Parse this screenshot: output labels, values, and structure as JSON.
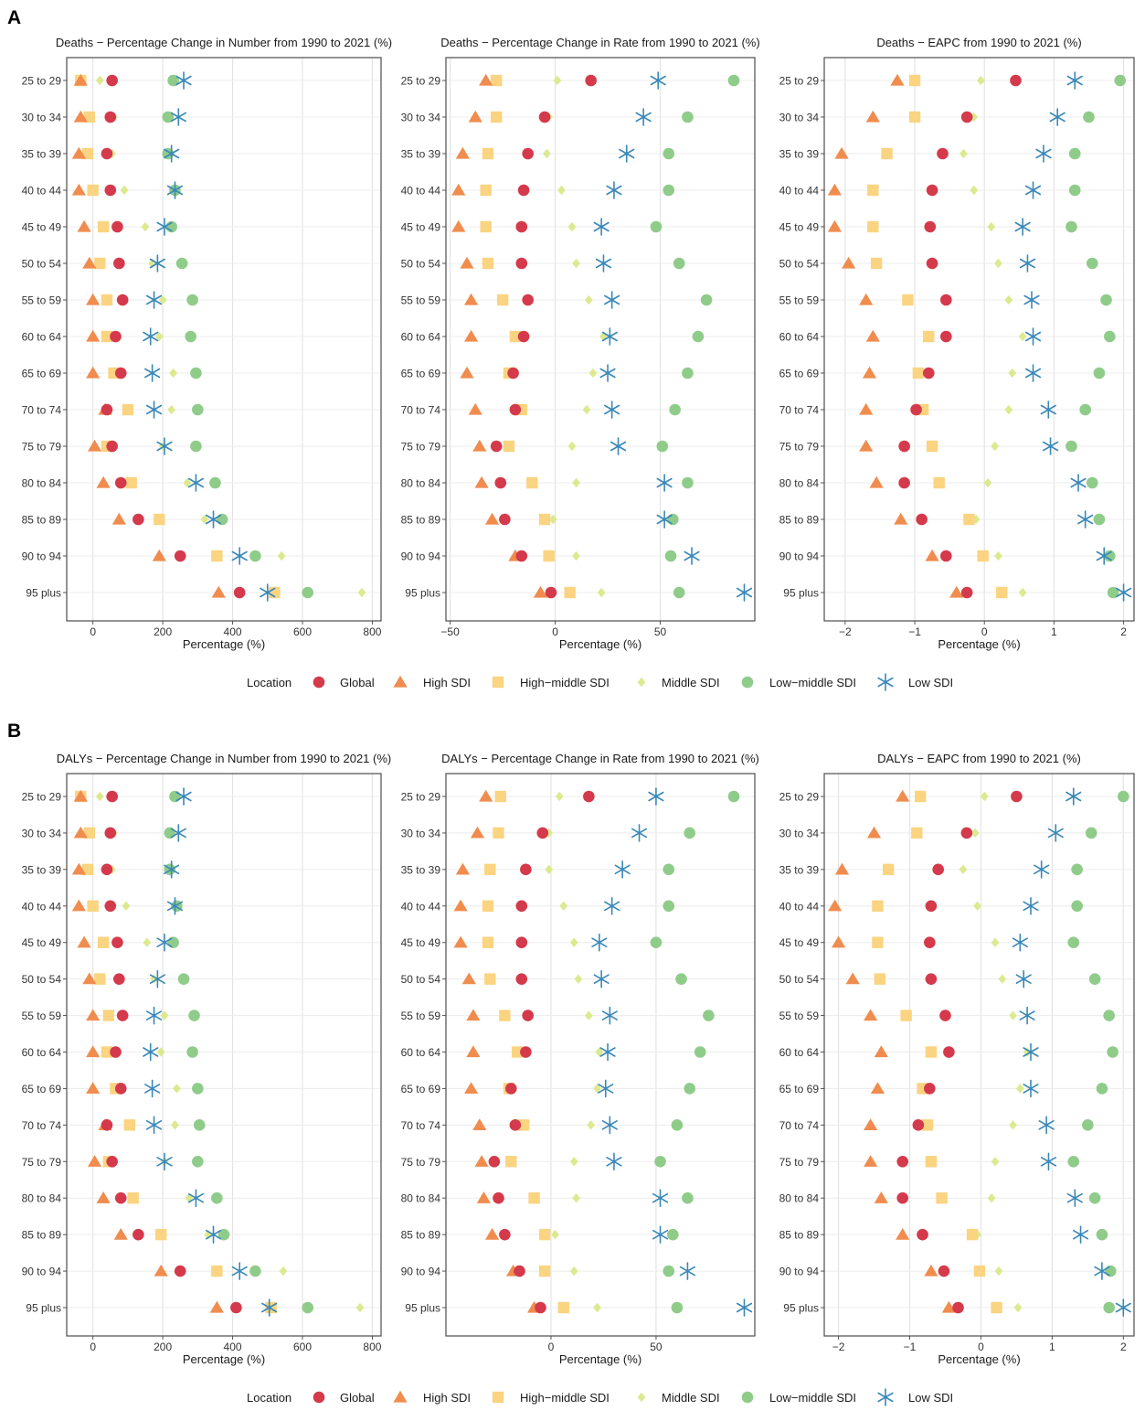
{
  "figure": {
    "panel_labels": [
      "A",
      "B"
    ],
    "legend": {
      "title": "Location",
      "entries": [
        "Global",
        "High SDI",
        "High−middle SDI",
        "Middle SDI",
        "Low−middle SDI",
        "Low SDI"
      ]
    }
  },
  "series_style": {
    "Global": {
      "shape": "circle",
      "color": "#d43a4b"
    },
    "High SDI": {
      "shape": "triangle",
      "color": "#f08c4e"
    },
    "High−middle SDI": {
      "shape": "square",
      "color": "#fad480"
    },
    "Middle SDI": {
      "shape": "diamond",
      "color": "#dde98f"
    },
    "Low−middle SDI": {
      "shape": "circle",
      "color": "#8fcc8a"
    },
    "Low SDI": {
      "shape": "asterisk",
      "color": "#3a88b8"
    }
  },
  "chart_data": [
    {
      "type": "scatter",
      "panel": "A",
      "title": "Deaths − Percentage Change in Number from 1990 to 2021 (%)",
      "xlabel": "Percentage (%)",
      "ylabel": "",
      "xlim": [
        -75,
        825
      ],
      "xticks": [
        0,
        200,
        400,
        600,
        800
      ],
      "xtick_labels": [
        "0",
        "200",
        "400",
        "600",
        "800"
      ],
      "grid": true,
      "categories": [
        "25 to 29",
        "30 to 34",
        "35 to 39",
        "40 to 44",
        "45 to 49",
        "50 to 54",
        "55 to 59",
        "60 to 64",
        "65 to 69",
        "70 to 74",
        "75 to 79",
        "80 to 84",
        "85 to 89",
        "90 to 94",
        "95 plus"
      ],
      "series": [
        {
          "name": "Global",
          "values": [
            55,
            50,
            40,
            50,
            70,
            75,
            85,
            65,
            80,
            40,
            55,
            80,
            130,
            250,
            420
          ]
        },
        {
          "name": "High SDI",
          "values": [
            -35,
            -35,
            -40,
            -40,
            -25,
            -10,
            0,
            0,
            0,
            35,
            5,
            30,
            75,
            190,
            360
          ]
        },
        {
          "name": "High−middle SDI",
          "values": [
            -35,
            -10,
            -15,
            0,
            30,
            20,
            40,
            40,
            60,
            100,
            40,
            110,
            190,
            355,
            520
          ]
        },
        {
          "name": "Middle SDI",
          "values": [
            20,
            60,
            55,
            90,
            150,
            170,
            200,
            190,
            230,
            225,
            200,
            270,
            320,
            540,
            770
          ]
        },
        {
          "name": "Low−middle SDI",
          "values": [
            230,
            215,
            215,
            235,
            225,
            255,
            285,
            280,
            295,
            300,
            295,
            350,
            370,
            465,
            615
          ]
        },
        {
          "name": "Low SDI",
          "values": [
            260,
            245,
            225,
            235,
            205,
            185,
            175,
            165,
            170,
            175,
            205,
            295,
            345,
            420,
            500
          ]
        }
      ]
    },
    {
      "type": "scatter",
      "panel": "A",
      "title": "Deaths − Percentage Change in Rate from 1990 to 2021 (%)",
      "xlabel": "Percentage (%)",
      "ylabel": "",
      "xlim": [
        -52,
        95
      ],
      "xticks": [
        -50,
        0,
        50
      ],
      "xtick_labels": [
        "−50",
        "0",
        "50"
      ],
      "grid": true,
      "categories": [
        "25 to 29",
        "30 to 34",
        "35 to 39",
        "40 to 44",
        "45 to 49",
        "50 to 54",
        "55 to 59",
        "60 to 64",
        "65 to 69",
        "70 to 74",
        "75 to 79",
        "80 to 84",
        "85 to 89",
        "90 to 94",
        "95 plus"
      ],
      "series": [
        {
          "name": "Global",
          "values": [
            17,
            -5,
            -13,
            -15,
            -16,
            -16,
            -13,
            -15,
            -20,
            -19,
            -28,
            -26,
            -24,
            -16,
            -2
          ]
        },
        {
          "name": "High SDI",
          "values": [
            -33,
            -38,
            -44,
            -46,
            -46,
            -42,
            -40,
            -40,
            -42,
            -38,
            -36,
            -35,
            -30,
            -19,
            -7
          ]
        },
        {
          "name": "High−middle SDI",
          "values": [
            -28,
            -28,
            -32,
            -33,
            -33,
            -32,
            -25,
            -19,
            -22,
            -16,
            -22,
            -11,
            -5,
            -3,
            7
          ]
        },
        {
          "name": "Middle SDI",
          "values": [
            1,
            -3,
            -4,
            3,
            8,
            10,
            16,
            23,
            18,
            15,
            8,
            10,
            -1,
            10,
            22
          ]
        },
        {
          "name": "Low−middle SDI",
          "values": [
            85,
            63,
            54,
            54,
            48,
            59,
            72,
            68,
            63,
            57,
            51,
            63,
            56,
            55,
            59
          ]
        },
        {
          "name": "Low SDI",
          "values": [
            49,
            42,
            34,
            28,
            22,
            23,
            27,
            26,
            25,
            27,
            30,
            52,
            52,
            65,
            90
          ]
        }
      ]
    },
    {
      "type": "scatter",
      "panel": "A",
      "title": "Deaths − EAPC from 1990 to 2021 (%)",
      "xlabel": "Percentage (%)",
      "ylabel": "",
      "xlim": [
        -2.3,
        2.15
      ],
      "xticks": [
        -2,
        -1,
        0,
        1,
        2
      ],
      "xtick_labels": [
        "−2",
        "−1",
        "0",
        "1",
        "2"
      ],
      "grid": true,
      "categories": [
        "25 to 29",
        "30 to 34",
        "35 to 39",
        "40 to 44",
        "45 to 49",
        "50 to 54",
        "55 to 59",
        "60 to 64",
        "65 to 69",
        "70 to 74",
        "75 to 79",
        "80 to 84",
        "85 to 89",
        "90 to 94",
        "95 plus"
      ],
      "series": [
        {
          "name": "Global",
          "values": [
            0.45,
            -0.25,
            -0.6,
            -0.75,
            -0.78,
            -0.75,
            -0.55,
            -0.55,
            -0.8,
            -0.98,
            -1.15,
            -1.15,
            -0.9,
            -0.55,
            -0.25
          ]
        },
        {
          "name": "High SDI",
          "values": [
            -1.25,
            -1.6,
            -2.05,
            -2.15,
            -2.15,
            -1.95,
            -1.7,
            -1.6,
            -1.65,
            -1.7,
            -1.7,
            -1.55,
            -1.2,
            -0.75,
            -0.4
          ]
        },
        {
          "name": "High−middle SDI",
          "values": [
            -1.0,
            -1.0,
            -1.4,
            -1.6,
            -1.6,
            -1.55,
            -1.1,
            -0.8,
            -0.95,
            -0.88,
            -0.75,
            -0.65,
            -0.22,
            -0.02,
            0.25
          ]
        },
        {
          "name": "Middle SDI",
          "values": [
            -0.05,
            -0.15,
            -0.3,
            -0.15,
            0.1,
            0.2,
            0.35,
            0.55,
            0.4,
            0.35,
            0.15,
            0.05,
            -0.12,
            0.2,
            0.55
          ]
        },
        {
          "name": "Low−middle SDI",
          "values": [
            1.95,
            1.5,
            1.3,
            1.3,
            1.25,
            1.55,
            1.75,
            1.8,
            1.65,
            1.45,
            1.25,
            1.55,
            1.65,
            1.8,
            1.85
          ]
        },
        {
          "name": "Low SDI",
          "values": [
            1.3,
            1.05,
            0.85,
            0.7,
            0.55,
            0.62,
            0.68,
            0.7,
            0.7,
            0.92,
            0.95,
            1.35,
            1.45,
            1.72,
            2.0
          ]
        }
      ]
    },
    {
      "type": "scatter",
      "panel": "B",
      "title": "DALYs − Percentage Change in Number from 1990 to 2021 (%)",
      "xlabel": "Percentage (%)",
      "ylabel": "",
      "xlim": [
        -75,
        825
      ],
      "xticks": [
        0,
        200,
        400,
        600,
        800
      ],
      "xtick_labels": [
        "0",
        "200",
        "400",
        "600",
        "800"
      ],
      "grid": true,
      "categories": [
        "25 to 29",
        "30 to 34",
        "35 to 39",
        "40 to 44",
        "45 to 49",
        "50 to 54",
        "55 to 59",
        "60 to 64",
        "65 to 69",
        "70 to 74",
        "75 to 79",
        "80 to 84",
        "85 to 89",
        "90 to 94",
        "95 plus"
      ],
      "series": [
        {
          "name": "Global",
          "values": [
            55,
            50,
            40,
            50,
            70,
            75,
            85,
            65,
            80,
            40,
            55,
            80,
            130,
            250,
            410
          ]
        },
        {
          "name": "High SDI",
          "values": [
            -35,
            -35,
            -40,
            -40,
            -25,
            -10,
            0,
            0,
            0,
            35,
            5,
            30,
            80,
            195,
            355
          ]
        },
        {
          "name": "High−middle SDI",
          "values": [
            -35,
            -10,
            -15,
            0,
            30,
            20,
            45,
            40,
            65,
            105,
            45,
            115,
            195,
            355,
            510
          ]
        },
        {
          "name": "Middle SDI",
          "values": [
            20,
            60,
            55,
            95,
            155,
            175,
            205,
            195,
            240,
            235,
            205,
            275,
            330,
            545,
            765
          ]
        },
        {
          "name": "Low−middle SDI",
          "values": [
            235,
            220,
            220,
            240,
            230,
            260,
            290,
            285,
            300,
            305,
            300,
            355,
            375,
            465,
            615
          ]
        },
        {
          "name": "Low SDI",
          "values": [
            260,
            245,
            225,
            235,
            205,
            185,
            175,
            165,
            170,
            175,
            205,
            295,
            345,
            420,
            505
          ]
        }
      ]
    },
    {
      "type": "scatter",
      "panel": "B",
      "title": "DALYs − Percentage Change in Rate from 1990 to 2021 (%)",
      "xlabel": "Percentage (%)",
      "ylabel": "",
      "xlim": [
        -50,
        97
      ],
      "xticks": [
        0,
        50
      ],
      "xtick_labels": [
        "0",
        "50"
      ],
      "grid": true,
      "categories": [
        "25 to 29",
        "30 to 34",
        "35 to 39",
        "40 to 44",
        "45 to 49",
        "50 to 54",
        "55 to 59",
        "60 to 64",
        "65 to 69",
        "70 to 74",
        "75 to 79",
        "80 to 84",
        "85 to 89",
        "90 to 94",
        "95 plus"
      ],
      "series": [
        {
          "name": "Global",
          "values": [
            18,
            -4,
            -12,
            -14,
            -14,
            -14,
            -11,
            -12,
            -19,
            -17,
            -27,
            -25,
            -22,
            -15,
            -5
          ]
        },
        {
          "name": "High SDI",
          "values": [
            -31,
            -35,
            -42,
            -43,
            -43,
            -39,
            -37,
            -37,
            -38,
            -34,
            -33,
            -32,
            -28,
            -18,
            -8
          ]
        },
        {
          "name": "High−middle SDI",
          "values": [
            -24,
            -25,
            -29,
            -30,
            -30,
            -29,
            -22,
            -16,
            -20,
            -13,
            -19,
            -8,
            -3,
            -3,
            6
          ]
        },
        {
          "name": "Middle SDI",
          "values": [
            4,
            -1,
            -1,
            6,
            11,
            13,
            18,
            23,
            22,
            19,
            11,
            12,
            2,
            11,
            22
          ]
        },
        {
          "name": "Low−middle SDI",
          "values": [
            87,
            66,
            56,
            56,
            50,
            62,
            75,
            71,
            66,
            60,
            52,
            65,
            58,
            56,
            60
          ]
        },
        {
          "name": "Low SDI",
          "values": [
            50,
            42,
            34,
            29,
            23,
            24,
            28,
            27,
            26,
            28,
            30,
            52,
            52,
            65,
            92
          ]
        }
      ]
    },
    {
      "type": "scatter",
      "panel": "B",
      "title": "DALYs − EAPC from 1990 to 2021 (%)",
      "xlabel": "Percentage (%)",
      "ylabel": "",
      "xlim": [
        -2.2,
        2.15
      ],
      "xticks": [
        -2,
        -1,
        0,
        1,
        2
      ],
      "xtick_labels": [
        "−2",
        "−1",
        "0",
        "1",
        "2"
      ],
      "grid": true,
      "categories": [
        "25 to 29",
        "30 to 34",
        "35 to 39",
        "40 to 44",
        "45 to 49",
        "50 to 54",
        "55 to 59",
        "60 to 64",
        "65 to 69",
        "70 to 74",
        "75 to 79",
        "80 to 84",
        "85 to 89",
        "90 to 94",
        "95 plus"
      ],
      "series": [
        {
          "name": "Global",
          "values": [
            0.5,
            -0.2,
            -0.6,
            -0.7,
            -0.72,
            -0.7,
            -0.5,
            -0.45,
            -0.72,
            -0.88,
            -1.1,
            -1.1,
            -0.82,
            -0.52,
            -0.32
          ]
        },
        {
          "name": "High SDI",
          "values": [
            -1.1,
            -1.5,
            -1.95,
            -2.05,
            -2.0,
            -1.8,
            -1.55,
            -1.4,
            -1.45,
            -1.55,
            -1.55,
            -1.4,
            -1.1,
            -0.7,
            -0.45
          ]
        },
        {
          "name": "High−middle SDI",
          "values": [
            -0.85,
            -0.9,
            -1.3,
            -1.45,
            -1.45,
            -1.42,
            -1.05,
            -0.7,
            -0.82,
            -0.75,
            -0.7,
            -0.55,
            -0.12,
            -0.02,
            0.22
          ]
        },
        {
          "name": "Middle SDI",
          "values": [
            0.05,
            -0.08,
            -0.25,
            -0.05,
            0.2,
            0.3,
            0.45,
            0.65,
            0.55,
            0.45,
            0.2,
            0.15,
            -0.05,
            0.25,
            0.52
          ]
        },
        {
          "name": "Low−middle SDI",
          "values": [
            2.0,
            1.55,
            1.35,
            1.35,
            1.3,
            1.6,
            1.8,
            1.85,
            1.7,
            1.5,
            1.3,
            1.6,
            1.7,
            1.82,
            1.8
          ]
        },
        {
          "name": "Low SDI",
          "values": [
            1.3,
            1.05,
            0.85,
            0.7,
            0.55,
            0.6,
            0.65,
            0.7,
            0.7,
            0.92,
            0.95,
            1.32,
            1.4,
            1.7,
            2.0
          ]
        }
      ]
    }
  ]
}
